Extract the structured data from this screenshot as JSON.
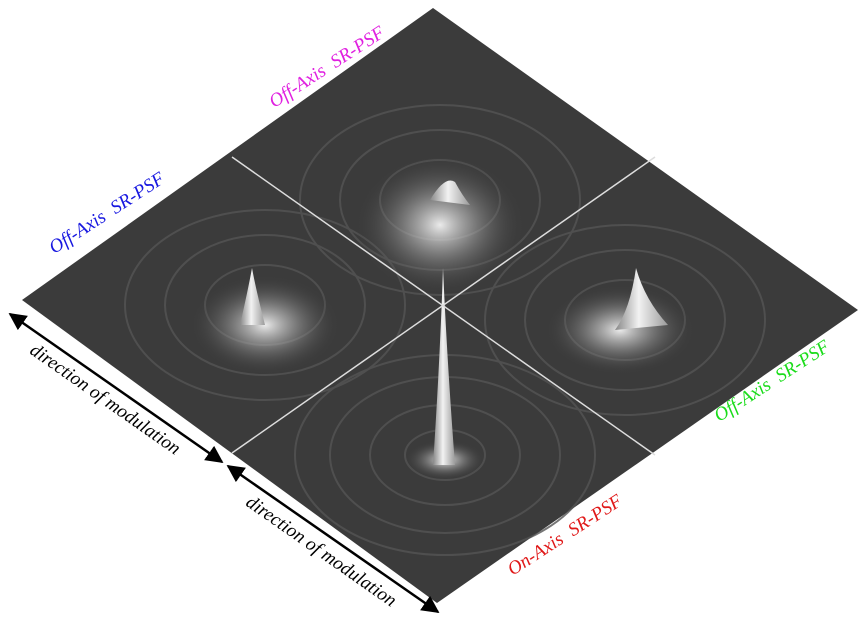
{
  "panels": [
    {
      "label": "Off-Axis SR-PSF"
    },
    {
      "label": "Off-Axis SR-PSF"
    },
    {
      "label": "Off-Axis SR-PSF"
    },
    {
      "label": "On-Axis SR-PSF"
    }
  ],
  "arrows": [
    {
      "label": "direction of modulation"
    },
    {
      "label": "direction of modulation"
    }
  ]
}
